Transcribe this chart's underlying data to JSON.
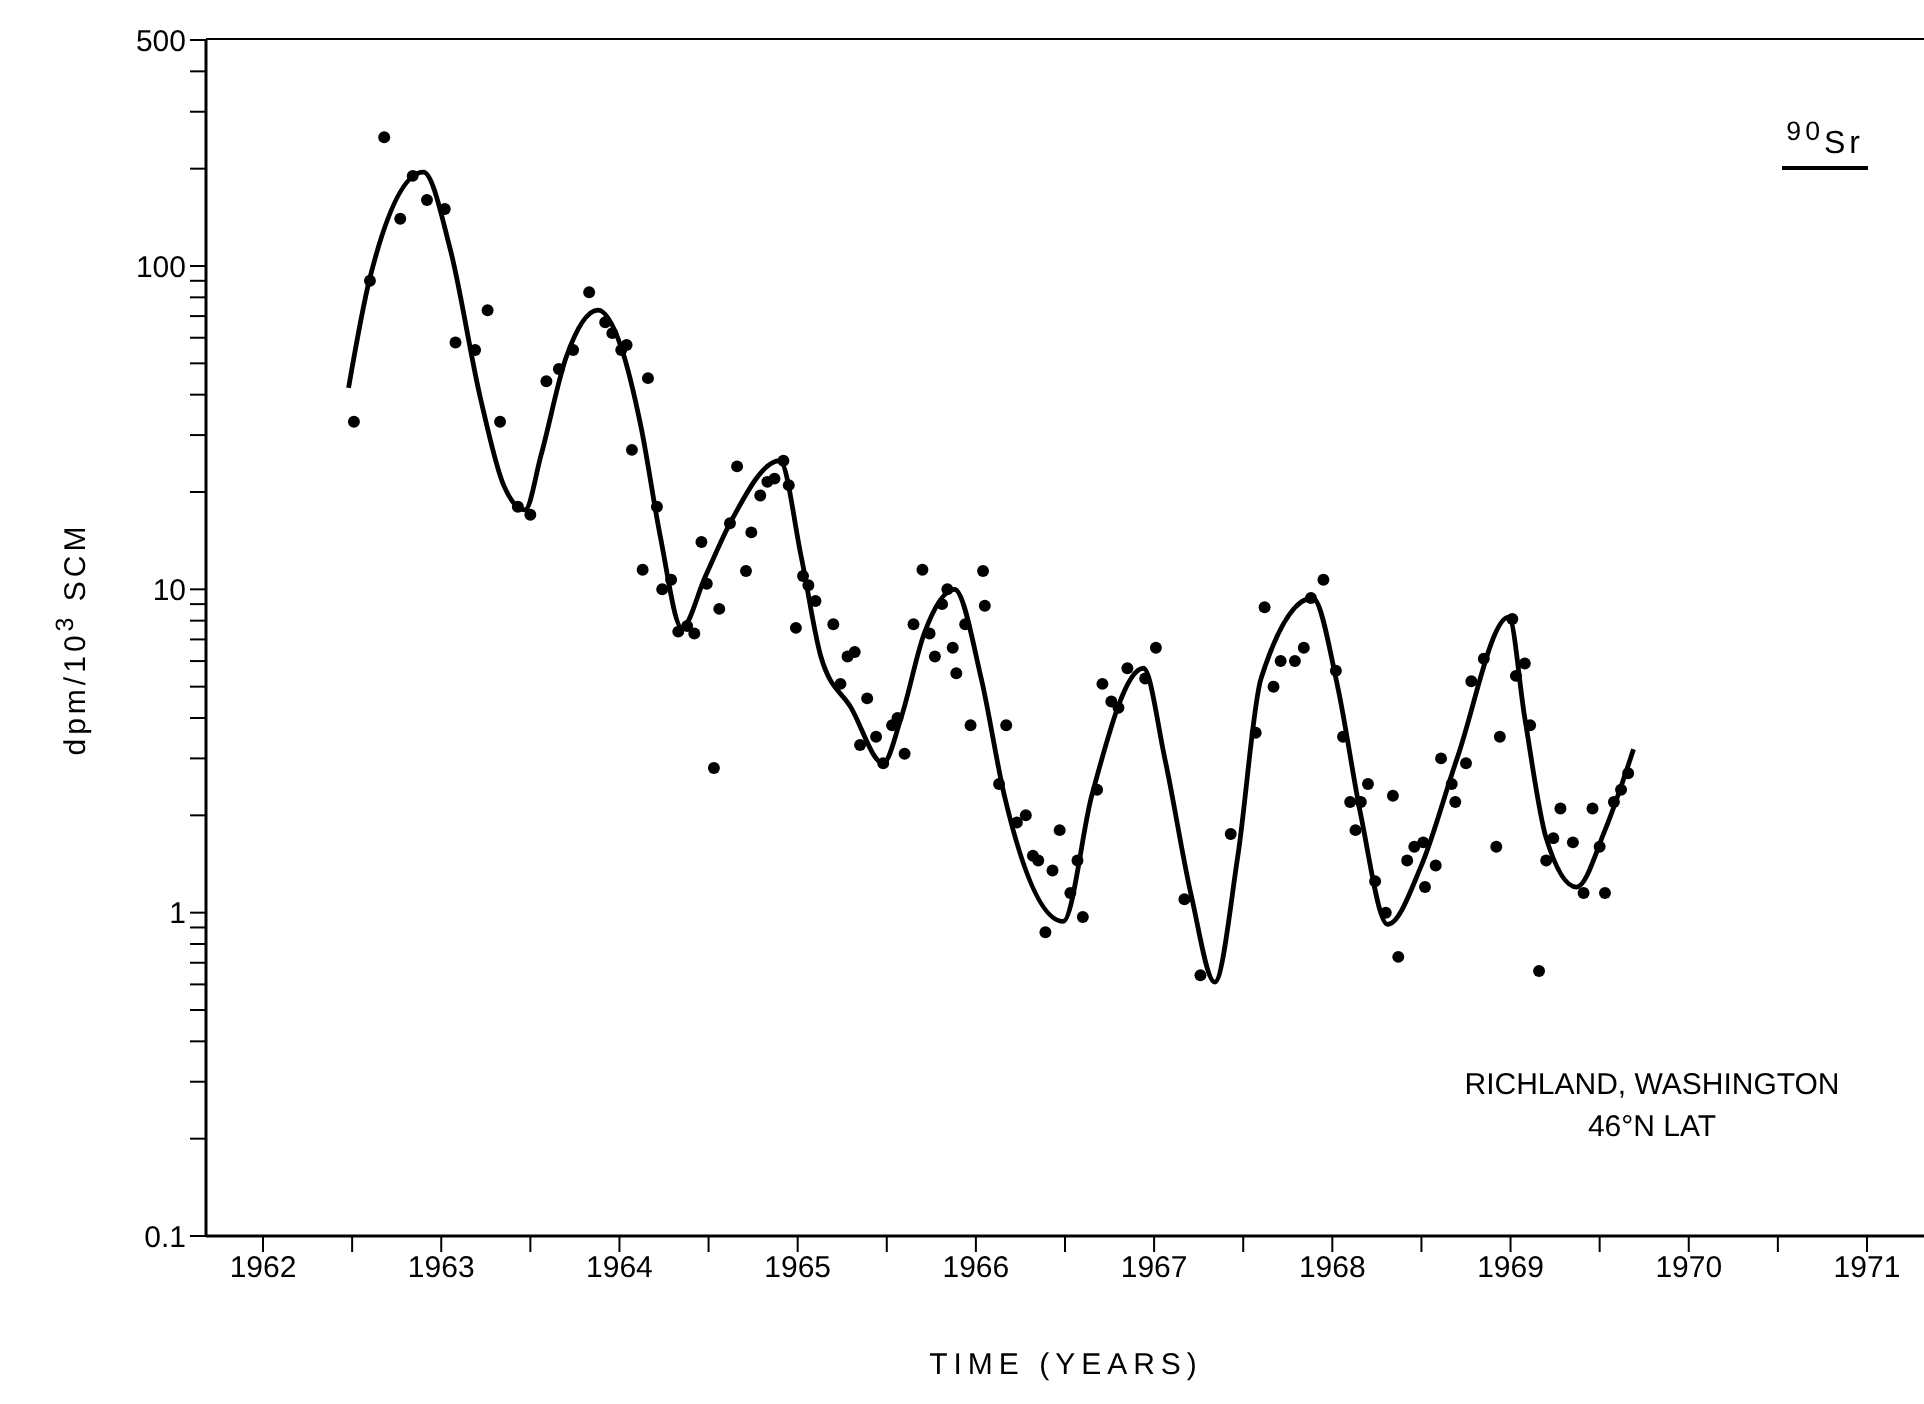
{
  "chart_data": {
    "type": "scatter",
    "title": "$^{90}$Sr",
    "xlabel": "TIME (YEARS)",
    "ylabel": "dpm/10$^{3}$ SCM",
    "annotations": [
      "RICHLAND, WASHINGTON",
      "46°N LAT"
    ],
    "log": "y",
    "grid": false,
    "xlim": [
      1962.18,
      1971.82
    ],
    "xticks": [
      {
        "value": 1962.5,
        "label": "1962"
      },
      {
        "value": 1963,
        "label": null
      },
      {
        "value": 1963.5,
        "label": "1963"
      },
      {
        "value": 1964,
        "label": null
      },
      {
        "value": 1964.5,
        "label": "1964"
      },
      {
        "value": 1965,
        "label": null
      },
      {
        "value": 1965.5,
        "label": "1965"
      },
      {
        "value": 1966,
        "label": null
      },
      {
        "value": 1966.5,
        "label": "1966"
      },
      {
        "value": 1967,
        "label": null
      },
      {
        "value": 1967.5,
        "label": "1967"
      },
      {
        "value": 1968,
        "label": null
      },
      {
        "value": 1968.5,
        "label": "1968"
      },
      {
        "value": 1969,
        "label": null
      },
      {
        "value": 1969.5,
        "label": "1969"
      },
      {
        "value": 1970,
        "label": null
      },
      {
        "value": 1970.5,
        "label": "1970"
      },
      {
        "value": 1971,
        "label": null
      },
      {
        "value": 1971.5,
        "label": "1971"
      }
    ],
    "ylim": [
      0.1,
      500
    ],
    "yticks": [
      0.1,
      {
        "value": 0.2,
        "label": null
      },
      {
        "value": 0.3,
        "label": null
      },
      {
        "value": 0.4,
        "label": null
      },
      {
        "value": 0.5,
        "label": null
      },
      {
        "value": 0.6,
        "label": null
      },
      {
        "value": 0.7,
        "label": null
      },
      {
        "value": 0.8,
        "label": null
      },
      {
        "value": 0.9,
        "label": null
      },
      1,
      {
        "value": 2,
        "label": null
      },
      {
        "value": 3,
        "label": null
      },
      {
        "value": 4,
        "label": null
      },
      {
        "value": 5,
        "label": null
      },
      {
        "value": 6,
        "label": null
      },
      {
        "value": 7,
        "label": null
      },
      {
        "value": 8,
        "label": null
      },
      {
        "value": 9,
        "label": null
      },
      10,
      {
        "value": 20,
        "label": null
      },
      {
        "value": 30,
        "label": null
      },
      {
        "value": 40,
        "label": null
      },
      {
        "value": 50,
        "label": null
      },
      {
        "value": 60,
        "label": null
      },
      {
        "value": 70,
        "label": null
      },
      {
        "value": 80,
        "label": null
      },
      {
        "value": 90,
        "label": null
      },
      100,
      {
        "value": 200,
        "label": null
      },
      {
        "value": 300,
        "label": null
      },
      {
        "value": 400,
        "label": null
      },
      500
    ],
    "series": [
      {
        "color": "#000000",
        "marker": "circle",
        "x": [
          1963.01,
          1963.1,
          1963.18,
          1963.27,
          1963.34,
          1963.42,
          1963.52,
          1963.58,
          1963.69,
          1963.76,
          1963.83,
          1963.93,
          1964.0,
          1964.09,
          1964.16,
          1964.24,
          1964.33,
          1964.42,
          1964.46,
          1964.51,
          1964.54,
          1964.57,
          1964.63,
          1964.66,
          1964.71,
          1964.74,
          1964.79,
          1964.83,
          1964.88,
          1964.92,
          1964.96,
          1964.99,
          1965.03,
          1965.06,
          1965.12,
          1965.16,
          1965.21,
          1965.24,
          1965.29,
          1965.33,
          1965.37,
          1965.42,
          1965.45,
          1965.49,
          1965.53,
          1965.56,
          1965.6,
          1965.7,
          1965.74,
          1965.78,
          1965.82,
          1965.85,
          1965.89,
          1965.94,
          1965.98,
          1966.03,
          1966.06,
          1966.1,
          1966.15,
          1966.2,
          1966.24,
          1966.27,
          1966.31,
          1966.34,
          1966.37,
          1966.39,
          1966.44,
          1966.47,
          1966.54,
          1966.55,
          1966.63,
          1966.67,
          1966.73,
          1966.78,
          1966.82,
          1966.85,
          1966.89,
          1966.93,
          1966.97,
          1967.03,
          1967.07,
          1967.1,
          1967.18,
          1967.21,
          1967.26,
          1967.3,
          1967.35,
          1967.45,
          1967.51,
          1967.67,
          1967.76,
          1967.93,
          1968.07,
          1968.12,
          1968.17,
          1968.21,
          1968.29,
          1968.34,
          1968.38,
          1968.45,
          1968.52,
          1968.56,
          1968.6,
          1968.63,
          1968.66,
          1968.7,
          1968.74,
          1968.8,
          1968.84,
          1968.87,
          1968.92,
          1968.96,
          1969.01,
          1969.02,
          1969.08,
          1969.11,
          1969.17,
          1969.19,
          1969.25,
          1969.28,
          1969.35,
          1969.42,
          1969.44,
          1969.51,
          1969.53,
          1969.58,
          1969.61,
          1969.66,
          1969.7,
          1969.74,
          1969.78,
          1969.85,
          1969.91,
          1969.96,
          1970.0,
          1970.03,
          1970.08,
          1970.12,
          1970.16
        ],
        "values": [
          33,
          90,
          250,
          140,
          190,
          160,
          150,
          58,
          55,
          73,
          33,
          18,
          17,
          44,
          48,
          55,
          83,
          67,
          62,
          55,
          57,
          27,
          11.5,
          45,
          18,
          10,
          10.7,
          7.4,
          7.7,
          7.3,
          14,
          10.4,
          2.8,
          8.7,
          16,
          24,
          11.4,
          15,
          19.5,
          21.5,
          22,
          25,
          21,
          7.6,
          11,
          10.3,
          9.2,
          7.8,
          5.1,
          6.2,
          6.4,
          3.3,
          4.6,
          3.5,
          2.9,
          3.8,
          4,
          3.1,
          7.8,
          11.5,
          7.3,
          6.2,
          9,
          10,
          6.6,
          5.5,
          7.8,
          3.8,
          11.4,
          8.9,
          2.5,
          3.8,
          1.9,
          2,
          1.5,
          1.45,
          0.87,
          1.35,
          1.8,
          1.15,
          1.45,
          0.97,
          2.4,
          5.1,
          4.5,
          4.3,
          5.7,
          5.3,
          6.6,
          1.1,
          0.64,
          1.75,
          3.6,
          8.8,
          5,
          6,
          6,
          6.6,
          9.4,
          10.7,
          5.6,
          3.5,
          2.2,
          1.8,
          2.2,
          2.5,
          1.25,
          1,
          2.3,
          0.73,
          1.45,
          1.6,
          1.65,
          1.2,
          1.4,
          3,
          2.5,
          2.2,
          2.9,
          5.2,
          6.1,
          1.6,
          3.5,
          8.1,
          5.4,
          5.9,
          3.8,
          0.66,
          1.45,
          1.7,
          2.1,
          1.65,
          1.15,
          2.1,
          1.6,
          1.15,
          2.2,
          2.4,
          2.7
        ]
      },
      {
        "type": "line",
        "color": "#000000",
        "marker": "none",
        "x": [
          1962.98,
          1963.1,
          1963.4,
          1963.55,
          1963.72,
          1963.85,
          1963.97,
          1964.06,
          1964.2,
          1964.38,
          1964.51,
          1964.62,
          1964.73,
          1964.85,
          1964.98,
          1965.12,
          1965.4,
          1965.52,
          1965.63,
          1965.8,
          1965.98,
          1966.08,
          1966.21,
          1966.38,
          1966.53,
          1966.66,
          1966.99,
          1967.15,
          1967.44,
          1967.56,
          1967.71,
          1967.84,
          1967.97,
          1968.1,
          1968.39,
          1968.53,
          1968.66,
          1968.81,
          1969.0,
          1969.2,
          1969.49,
          1969.58,
          1969.7,
          1969.87,
          1970.03,
          1970.19
        ],
        "values": [
          42,
          92,
          195,
          113,
          39,
          21,
          17.6,
          26,
          52,
          73,
          56,
          32,
          14.5,
          7.6,
          10.9,
          16,
          25,
          12.6,
          6.2,
          4.3,
          2.9,
          4,
          7.3,
          10,
          5.3,
          2.3,
          0.94,
          2.3,
          5.7,
          3,
          1.12,
          0.61,
          1.5,
          5.3,
          9.4,
          5,
          2,
          0.92,
          1.4,
          3,
          8.2,
          4,
          1.7,
          1.2,
          1.8,
          3.2
        ]
      }
    ]
  }
}
